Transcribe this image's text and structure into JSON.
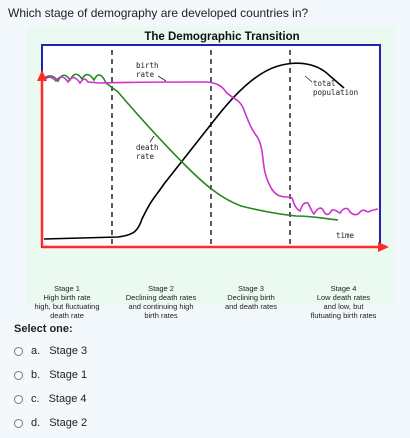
{
  "question": "Which stage of demography are developed countries in?",
  "figure": {
    "title": "The Demographic Transition",
    "labels": {
      "birth_rate": [
        "birth",
        "rate"
      ],
      "death_rate": [
        "death",
        "rate"
      ],
      "total_population": [
        "total",
        "population"
      ],
      "time": "time"
    },
    "stages": [
      {
        "name": "Stage 1",
        "desc": [
          "High birth rate",
          "high, but fluctuating",
          "death rate"
        ]
      },
      {
        "name": "Stage 2",
        "desc": [
          "Declining death rates",
          "and continuing high",
          "birth rates"
        ]
      },
      {
        "name": "Stage 3",
        "desc": [
          "Declining birth",
          "and death rates"
        ]
      },
      {
        "name": "Stage 4",
        "desc": [
          "Low death rates",
          "and low, but",
          "flutuating birth rates"
        ]
      }
    ],
    "colors": {
      "birth_rate": "#cc33cc",
      "death_rate": "#228822",
      "total_population": "#000000",
      "axis": "#ff2a2a",
      "frame": "#2222aa",
      "background": "#e8f8ee"
    }
  },
  "select_label": "Select one:",
  "options": [
    {
      "letter": "a.",
      "text": "Stage 3"
    },
    {
      "letter": "b.",
      "text": "Stage 1"
    },
    {
      "letter": "c.",
      "text": "Stage 4"
    },
    {
      "letter": "d.",
      "text": "Stage 2"
    }
  ]
}
